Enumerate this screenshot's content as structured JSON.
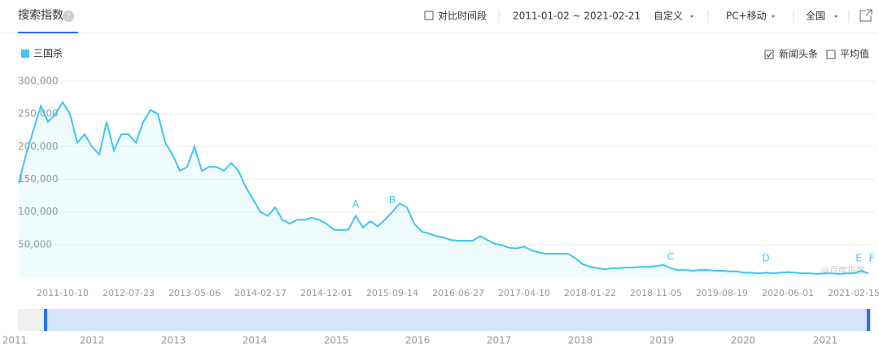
{
  "header": {
    "tab": "搜索指数",
    "help": "?",
    "compare": "对比时间段",
    "range": "2011-01-02 ~ 2021-02-21",
    "custom": "自定义",
    "device": "PC+移动",
    "region": "全国"
  },
  "ui": {
    "news": "新闻头条",
    "average": "平均值",
    "watermark": "@百度指数"
  },
  "chart_data": {
    "type": "line",
    "categories": [
      null,
      null,
      null,
      null,
      null,
      null,
      "2011-10-10",
      null,
      null,
      null,
      null,
      null,
      null,
      null,
      null,
      "2012-07-23",
      null,
      null,
      null,
      null,
      null,
      null,
      null,
      null,
      "2013-05-06",
      null,
      null,
      null,
      null,
      null,
      null,
      null,
      null,
      "2014-02-17",
      null,
      null,
      null,
      null,
      null,
      null,
      null,
      null,
      "2014-12-01",
      null,
      null,
      null,
      null,
      null,
      null,
      null,
      null,
      "2015-09-14",
      null,
      null,
      null,
      null,
      null,
      null,
      null,
      null,
      "2016-06-27",
      null,
      null,
      null,
      null,
      null,
      null,
      null,
      null,
      "2017-04-10",
      null,
      null,
      null,
      null,
      null,
      null,
      null,
      null,
      "2018-01-22",
      null,
      null,
      null,
      null,
      null,
      null,
      null,
      null,
      "2018-11-05",
      null,
      null,
      null,
      null,
      null,
      null,
      null,
      null,
      "2019-08-19",
      null,
      null,
      null,
      null,
      null,
      null,
      null,
      null,
      "2020-06-01",
      null,
      null,
      null,
      null,
      null,
      null,
      null,
      null,
      "2021-02-15",
      null,
      null
    ],
    "series": [
      {
        "name": "三国杀",
        "color": "#3ec6f0",
        "values": [
          144000,
          188000,
          225000,
          262000,
          238000,
          250000,
          268000,
          250000,
          206000,
          219000,
          200000,
          188000,
          238000,
          194000,
          219000,
          219000,
          206000,
          238000,
          256000,
          250000,
          206000,
          188000,
          163000,
          169000,
          200000,
          163000,
          169000,
          169000,
          163000,
          175000,
          163000,
          138000,
          119000,
          100000,
          94000,
          107000,
          88000,
          82000,
          88000,
          88000,
          91000,
          88000,
          82000,
          73000,
          72000,
          73000,
          94000,
          76000,
          86000,
          78000,
          88000,
          100000,
          113000,
          107000,
          82000,
          70000,
          67000,
          63000,
          61000,
          57000,
          56000,
          56000,
          56000,
          63000,
          57000,
          51000,
          49000,
          45000,
          44000,
          47000,
          41000,
          38000,
          36000,
          36000,
          36000,
          36000,
          29000,
          20000,
          16000,
          14000,
          12000,
          14000,
          14000,
          15000,
          15000,
          16000,
          16000,
          17000,
          19000,
          14000,
          11000,
          11000,
          10000,
          11000,
          11000,
          10000,
          10000,
          9000,
          9000,
          7000,
          7000,
          6000,
          7000,
          6000,
          7000,
          8000,
          7000,
          6000,
          6000,
          5000,
          6000,
          6000,
          5000,
          6000,
          6000,
          10000,
          6000
        ]
      }
    ],
    "ylim": [
      0,
      300000
    ],
    "yticks": [
      {
        "value": 50000,
        "label": "50,000"
      },
      {
        "value": 100000,
        "label": "100,000"
      },
      {
        "value": 150000,
        "label": "150,000"
      },
      {
        "value": 200000,
        "label": "200,000"
      },
      {
        "value": 250000,
        "label": "250,000"
      },
      {
        "value": 300000,
        "label": "300,000"
      }
    ],
    "grid": true,
    "annotations": [
      "A",
      "B",
      "C",
      "D",
      "E",
      "F"
    ],
    "navigator_years": [
      "2011",
      "2012",
      "2013",
      "2014",
      "2015",
      "2016",
      "2017",
      "2018",
      "2019",
      "2020",
      "2021"
    ]
  }
}
